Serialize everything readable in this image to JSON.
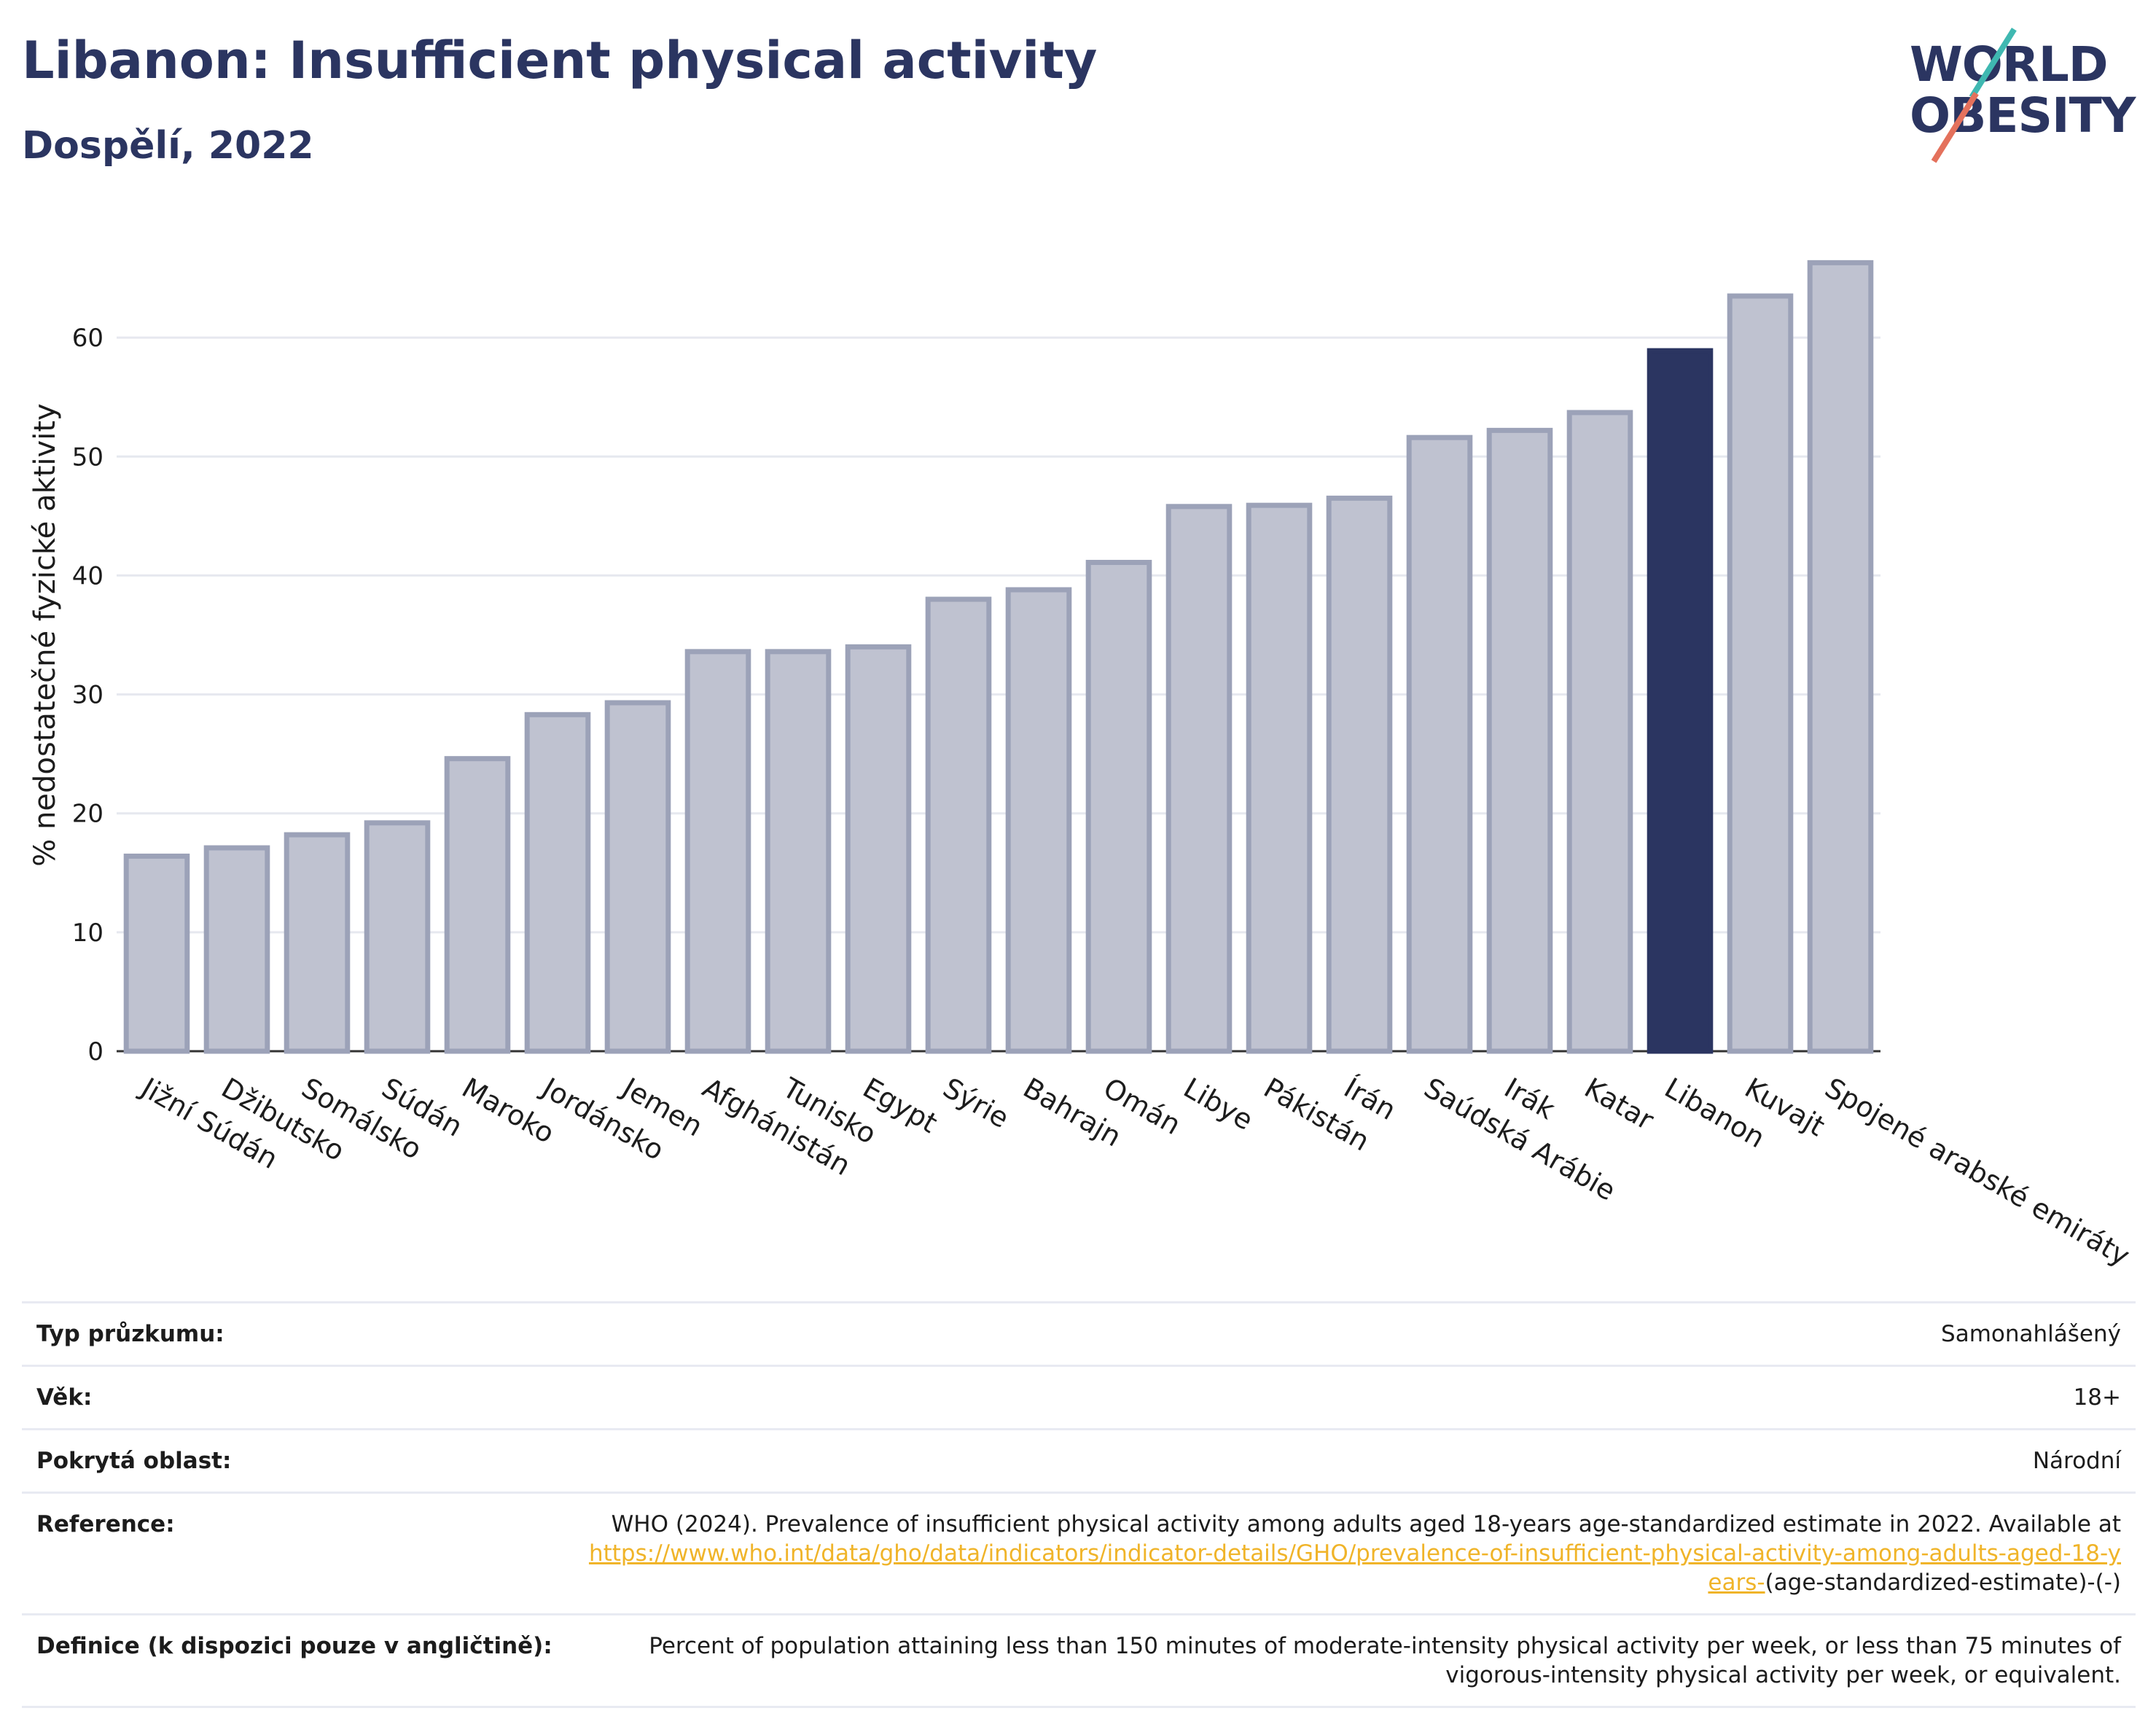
{
  "header": {
    "title": "Libanon: Insufficient physical activity",
    "subtitle": "Dospělí, 2022"
  },
  "logo": {
    "line1": "WORLD",
    "line2": "OBESITY",
    "colors": {
      "text": "#2b3561",
      "slash_top": "#3fb8b1",
      "slash_bottom": "#e4715c"
    }
  },
  "chart_data": {
    "type": "bar",
    "title": "Libanon: Insufficient physical activity",
    "subtitle": "Dospělí, 2022",
    "ylabel": "% nedostatečné fyzické aktivity",
    "xlabel": "",
    "ylim": [
      0,
      70
    ],
    "yticks": [
      0,
      10,
      20,
      30,
      40,
      50,
      60
    ],
    "grid": true,
    "highlight": "Libanon",
    "colors": {
      "bar": "#bfc2d0",
      "bar_edge": "#9ca2b8",
      "highlight": "#2b3561",
      "grid": "#e6e8ef"
    },
    "categories": [
      "Jižní Súdán",
      "Džibutsko",
      "Somálsko",
      "Súdán",
      "Maroko",
      "Jordánsko",
      "Jemen",
      "Afghánistán",
      "Tunisko",
      "Egypt",
      "Sýrie",
      "Bahrajn",
      "Omán",
      "Libye",
      "Pákistán",
      "Írán",
      "Saúdská Arábie",
      "Irák",
      "Katar",
      "Libanon",
      "Kuvajt",
      "Spojené arabské emiráty"
    ],
    "values": [
      16.4,
      17.1,
      18.2,
      19.2,
      24.6,
      28.3,
      29.3,
      33.6,
      33.6,
      34.0,
      38.0,
      38.8,
      41.1,
      45.8,
      45.9,
      46.5,
      51.6,
      52.2,
      53.7,
      58.9,
      63.5,
      66.3
    ]
  },
  "meta": {
    "rows": [
      {
        "key": "Typ průzkumu:",
        "value": "Samonahlášený"
      },
      {
        "key": "Věk:",
        "value": "18+"
      },
      {
        "key": "Pokrytá oblast:",
        "value": "Národní"
      }
    ],
    "reference": {
      "key": "Reference:",
      "text": "WHO (2024). Prevalence of insufficient physical activity among adults aged 18-years age-standardized estimate in 2022. Available at",
      "link": "https://www.who.int/data/gho/data/indicators/indicator-details/GHO/prevalence-of-insufficient-physical-activity-among-adults-aged-18-years-",
      "suffix": "(age-standardized-estimate)-(-)"
    },
    "definition": {
      "key": "Definice (k dispozici pouze v angličtině):",
      "value": "Percent of population attaining less than 150 minutes of moderate-intensity physical activity per week, or less than 75 minutes of vigorous-intensity physical activity per week, or equivalent."
    }
  }
}
